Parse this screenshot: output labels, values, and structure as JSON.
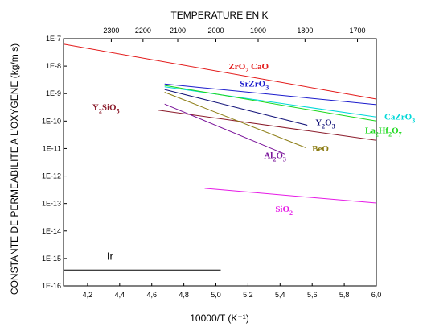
{
  "chart_data": {
    "type": "line",
    "title": "",
    "xlabel": "10000/T (K⁻¹)",
    "x2label": "TEMPERATURE EN K",
    "ylabel": "CONSTANTE DE PERMEABILITE A L'OXYGENE (kg/m s)",
    "xlim": [
      4.05,
      6.0
    ],
    "ylim_log10": [
      -16,
      -7
    ],
    "x_ticks": [
      "4,2",
      "4,4",
      "4,6",
      "4,8",
      "5,0",
      "5,2",
      "5,4",
      "5,6",
      "5,8",
      "6,0"
    ],
    "x_tick_values": [
      4.2,
      4.4,
      4.6,
      4.8,
      5.0,
      5.2,
      5.4,
      5.6,
      5.8,
      6.0
    ],
    "y_ticks": [
      "1E-7",
      "1E-8",
      "1E-9",
      "1E-10",
      "1E-11",
      "1E-12",
      "1E-13",
      "1E-14",
      "1E-15",
      "1E-16"
    ],
    "y_tick_values": [
      -7,
      -8,
      -9,
      -10,
      -11,
      -12,
      -13,
      -14,
      -15,
      -16
    ],
    "top_ticks": [
      "2300",
      "2200",
      "2100",
      "2000",
      "1900",
      "1800",
      "1700"
    ],
    "top_tick_values": [
      2300,
      2200,
      2100,
      2000,
      1900,
      1800,
      1700
    ],
    "series": [
      {
        "name": "ZrO2 CaO",
        "label_parts": [
          {
            "t": "ZrO"
          },
          {
            "t": "2",
            "sub": true
          },
          {
            "t": " CaO"
          }
        ],
        "color": "#e31a1a",
        "x": [
          4.05,
          6.0
        ],
        "y_log10": [
          -7.2,
          -9.2
        ],
        "label_x": 5.08,
        "label_y_log10": -8.12
      },
      {
        "name": "SrZrO3",
        "label_parts": [
          {
            "t": "SrZrO"
          },
          {
            "t": "3",
            "sub": true
          }
        ],
        "color": "#1a1acc",
        "x": [
          4.68,
          6.0
        ],
        "y_log10": [
          -8.65,
          -9.4
        ],
        "label_x": 5.15,
        "label_y_log10": -8.75
      },
      {
        "name": "CaZrO3",
        "label_parts": [
          {
            "t": "CaZrO"
          },
          {
            "t": "3",
            "sub": true
          }
        ],
        "color": "#00d8d8",
        "x": [
          4.68,
          6.0
        ],
        "y_log10": [
          -8.75,
          -9.85
        ],
        "label_x": 6.05,
        "label_y_log10": -9.95
      },
      {
        "name": "La2Hf2O7",
        "label_parts": [
          {
            "t": "La"
          },
          {
            "t": "2",
            "sub": true
          },
          {
            "t": "Hf"
          },
          {
            "t": "2",
            "sub": true
          },
          {
            "t": "O"
          },
          {
            "t": "7",
            "sub": true
          }
        ],
        "color": "#1ad81a",
        "x": [
          4.68,
          6.0
        ],
        "y_log10": [
          -8.7,
          -10.0
        ],
        "label_x": 5.93,
        "label_y_log10": -10.45
      },
      {
        "name": "Y2O3",
        "label_parts": [
          {
            "t": "Y"
          },
          {
            "t": "2",
            "sub": true
          },
          {
            "t": "O"
          },
          {
            "t": "3",
            "sub": true
          }
        ],
        "color": "#14147a",
        "x": [
          4.68,
          5.57
        ],
        "y_log10": [
          -8.85,
          -10.15
        ],
        "label_x": 5.62,
        "label_y_log10": -10.15
      },
      {
        "name": "Y2SiO5",
        "label_parts": [
          {
            "t": "Y"
          },
          {
            "t": "2",
            "sub": true
          },
          {
            "t": "SiO"
          },
          {
            "t": "5",
            "sub": true
          }
        ],
        "color": "#8a1a2a",
        "x": [
          4.64,
          6.0
        ],
        "y_log10": [
          -9.6,
          -10.7
        ],
        "label_x": 4.23,
        "label_y_log10": -9.6
      },
      {
        "name": "Al2O3",
        "label_parts": [
          {
            "t": "Al"
          },
          {
            "t": "2",
            "sub": true
          },
          {
            "t": "O"
          },
          {
            "t": "3",
            "sub": true
          }
        ],
        "color": "#7a149a",
        "x": [
          4.68,
          5.43
        ],
        "y_log10": [
          -9.38,
          -11.2
        ],
        "label_x": 5.3,
        "label_y_log10": -11.35
      },
      {
        "name": "BeO",
        "label_parts": [
          {
            "t": "BeO"
          }
        ],
        "color": "#8a7a10",
        "x": [
          4.68,
          5.56
        ],
        "y_log10": [
          -8.95,
          -10.97
        ],
        "label_x": 5.6,
        "label_y_log10": -11.1
      },
      {
        "name": "SiO2",
        "label_parts": [
          {
            "t": "SiO"
          },
          {
            "t": "2",
            "sub": true
          }
        ],
        "color": "#e61ae6",
        "x": [
          4.93,
          6.0
        ],
        "y_log10": [
          -12.45,
          -12.98
        ],
        "label_x": 5.37,
        "label_y_log10": -13.3
      },
      {
        "name": "Ir",
        "label_parts": [
          {
            "t": "Ir"
          }
        ],
        "color": "#000000",
        "x": [
          4.05,
          5.03
        ],
        "y_log10": [
          -15.42,
          -15.42
        ],
        "label_x": 4.32,
        "label_y_log10": -15.05,
        "plain": true
      }
    ]
  }
}
